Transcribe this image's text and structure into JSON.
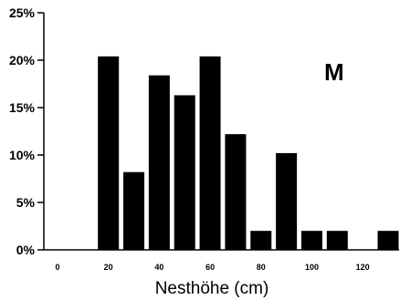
{
  "chart_data": {
    "type": "bar",
    "xlabel": "Nesthöhe (cm)",
    "ylabel": "",
    "annotation": "M",
    "xlim": [
      0,
      130
    ],
    "ylim": [
      0,
      25
    ],
    "x_ticks": [
      "0",
      "20",
      "40",
      "60",
      "80",
      "100",
      "120"
    ],
    "y_ticks": [
      "0%",
      "5%",
      "10%",
      "15%",
      "20%",
      "25%"
    ],
    "grid": false,
    "bar_color": "#000000",
    "bars": [
      {
        "x": 20,
        "value": 20.4
      },
      {
        "x": 30,
        "value": 8.2
      },
      {
        "x": 40,
        "value": 18.4
      },
      {
        "x": 50,
        "value": 16.3
      },
      {
        "x": 60,
        "value": 20.4
      },
      {
        "x": 70,
        "value": 12.2
      },
      {
        "x": 80,
        "value": 2.0
      },
      {
        "x": 90,
        "value": 10.2
      },
      {
        "x": 100,
        "value": 2.0
      },
      {
        "x": 110,
        "value": 2.0
      },
      {
        "x": 130,
        "value": 2.0
      }
    ]
  }
}
